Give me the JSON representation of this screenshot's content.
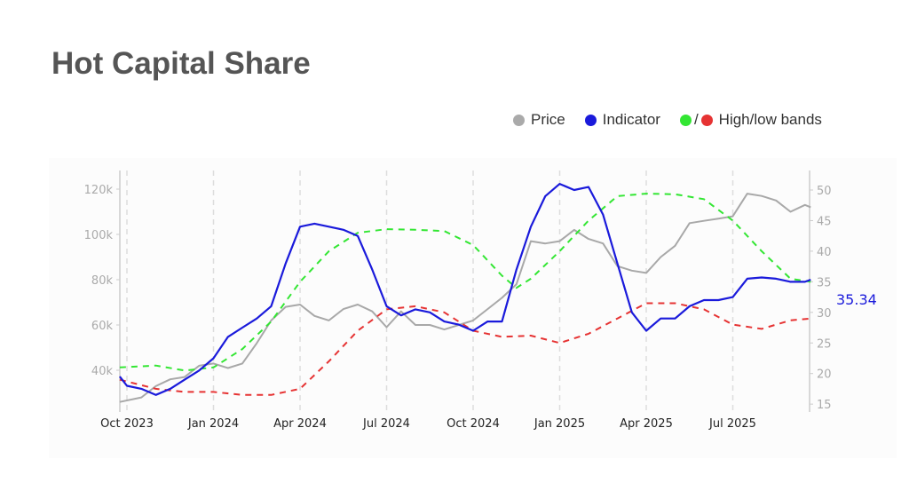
{
  "chart_data": {
    "type": "line",
    "title": "Hot Capital Share",
    "x_unit": "months since Oct 2023",
    "x_ticks": [
      {
        "m": 0,
        "label": "Oct 2023"
      },
      {
        "m": 3,
        "label": "Jan 2024"
      },
      {
        "m": 6,
        "label": "Apr 2024"
      },
      {
        "m": 9,
        "label": "Jul 2024"
      },
      {
        "m": 12,
        "label": "Oct 2024"
      },
      {
        "m": 15,
        "label": "Jan 2025"
      },
      {
        "m": 18,
        "label": "Apr 2025"
      },
      {
        "m": 21,
        "label": "Jul 2025"
      }
    ],
    "left_axis": {
      "ticks": [
        {
          "v": 40,
          "label": "40k"
        },
        {
          "v": 60,
          "label": "60k"
        },
        {
          "v": 80,
          "label": "80k"
        },
        {
          "v": 100,
          "label": "100k"
        },
        {
          "v": 120,
          "label": "120k"
        }
      ],
      "range": [
        23,
        128
      ],
      "unit": "thousands USD"
    },
    "right_axis": {
      "ticks": [
        {
          "v": 15,
          "label": "15"
        },
        {
          "v": 20,
          "label": "20"
        },
        {
          "v": 25,
          "label": "25"
        },
        {
          "v": 30,
          "label": "30"
        },
        {
          "v": 35,
          "label": "35"
        },
        {
          "v": 40,
          "label": "40"
        },
        {
          "v": 45,
          "label": "45"
        },
        {
          "v": 50,
          "label": "50"
        }
      ],
      "range": [
        14,
        53
      ]
    },
    "legend": {
      "placement": "top-right",
      "price": "Price",
      "indicator": "Indicator",
      "bands": "High/low bands",
      "slash": "/"
    },
    "last_value_label": "35.34",
    "colors": {
      "price": "#a8a8a8",
      "indicator": "#1a1adb",
      "high": "#33e633",
      "low": "#e63333"
    },
    "series": [
      {
        "name": "Price",
        "axis": "left",
        "x": [
          -0.25,
          0.5,
          1,
          1.5,
          2,
          2.5,
          3,
          3.5,
          4,
          4.5,
          5,
          5.5,
          6,
          6.5,
          7,
          7.5,
          8,
          8.5,
          9,
          9.5,
          10,
          10.5,
          11,
          11.5,
          12,
          12.5,
          13,
          13.5,
          14,
          14.5,
          15,
          15.5,
          16,
          16.5,
          17,
          17.5,
          18,
          18.5,
          19,
          19.5,
          20,
          20.5,
          21,
          21.5,
          22,
          22.5,
          23,
          23.5,
          23.7
        ],
        "y": [
          26,
          28,
          33,
          36,
          37,
          42,
          43,
          41,
          43,
          52,
          62,
          68,
          69,
          64,
          62,
          67,
          69,
          66,
          59,
          66,
          60,
          60,
          58,
          60,
          62,
          67,
          72,
          78,
          97,
          96,
          97,
          102,
          98,
          96,
          86,
          84,
          83,
          90,
          95,
          105,
          106,
          107,
          108,
          118,
          117,
          115,
          110,
          113,
          112
        ]
      },
      {
        "name": "Indicator",
        "axis": "right",
        "x": [
          -0.25,
          0,
          0.5,
          1,
          1.5,
          2,
          2.5,
          3,
          3.5,
          4,
          4.5,
          5,
          5.5,
          6,
          6.5,
          7,
          7.5,
          8,
          8.5,
          9,
          9.5,
          10,
          10.5,
          11,
          11.5,
          12,
          12.5,
          13,
          13.5,
          14,
          14.5,
          15,
          15.5,
          16,
          16.5,
          17,
          17.5,
          18,
          18.5,
          19,
          19.5,
          20,
          20.5,
          21,
          21.5,
          22,
          22.5,
          23,
          23.5,
          23.7
        ],
        "y": [
          19.5,
          18,
          17.5,
          16.5,
          17.5,
          19,
          20.5,
          22.5,
          26,
          27.5,
          29,
          31,
          38,
          44,
          44.5,
          44,
          43.5,
          42.5,
          37,
          31,
          29.5,
          30.5,
          30,
          28.5,
          28,
          27,
          28.5,
          28.5,
          37,
          44,
          49,
          51,
          50,
          50.5,
          46,
          38,
          30,
          27,
          29,
          29,
          31,
          32,
          32,
          32.5,
          35.5,
          35.7,
          35.5,
          35,
          35,
          35.34
        ]
      },
      {
        "name": "High band",
        "axis": "right",
        "x": [
          -0.25,
          1,
          2,
          3,
          4,
          5,
          6,
          7,
          8,
          9,
          10,
          11,
          12,
          13,
          13.5,
          14,
          15,
          16,
          17,
          18,
          19,
          20,
          21,
          22,
          23,
          23.7
        ],
        "y": [
          21,
          21.3,
          20.5,
          21,
          24,
          28.5,
          35,
          40,
          43,
          43.6,
          43.5,
          43.3,
          41,
          36,
          34,
          35.5,
          40,
          45,
          49,
          49.4,
          49.3,
          48.5,
          45,
          40,
          35.5,
          35
        ]
      },
      {
        "name": "Low band",
        "axis": "right",
        "x": [
          -0.25,
          1,
          2,
          3,
          4,
          5,
          6,
          7,
          8,
          9,
          10,
          11,
          12,
          13,
          14,
          15,
          16,
          17,
          18,
          19,
          20,
          21,
          22,
          23,
          23.7
        ],
        "y": [
          19,
          17.5,
          17,
          17,
          16.5,
          16.5,
          17.5,
          22,
          27,
          30.5,
          31,
          30,
          27,
          26,
          26.2,
          25,
          26.5,
          29,
          31.5,
          31.5,
          30.5,
          28,
          27.3,
          28.7,
          29
        ]
      }
    ]
  }
}
